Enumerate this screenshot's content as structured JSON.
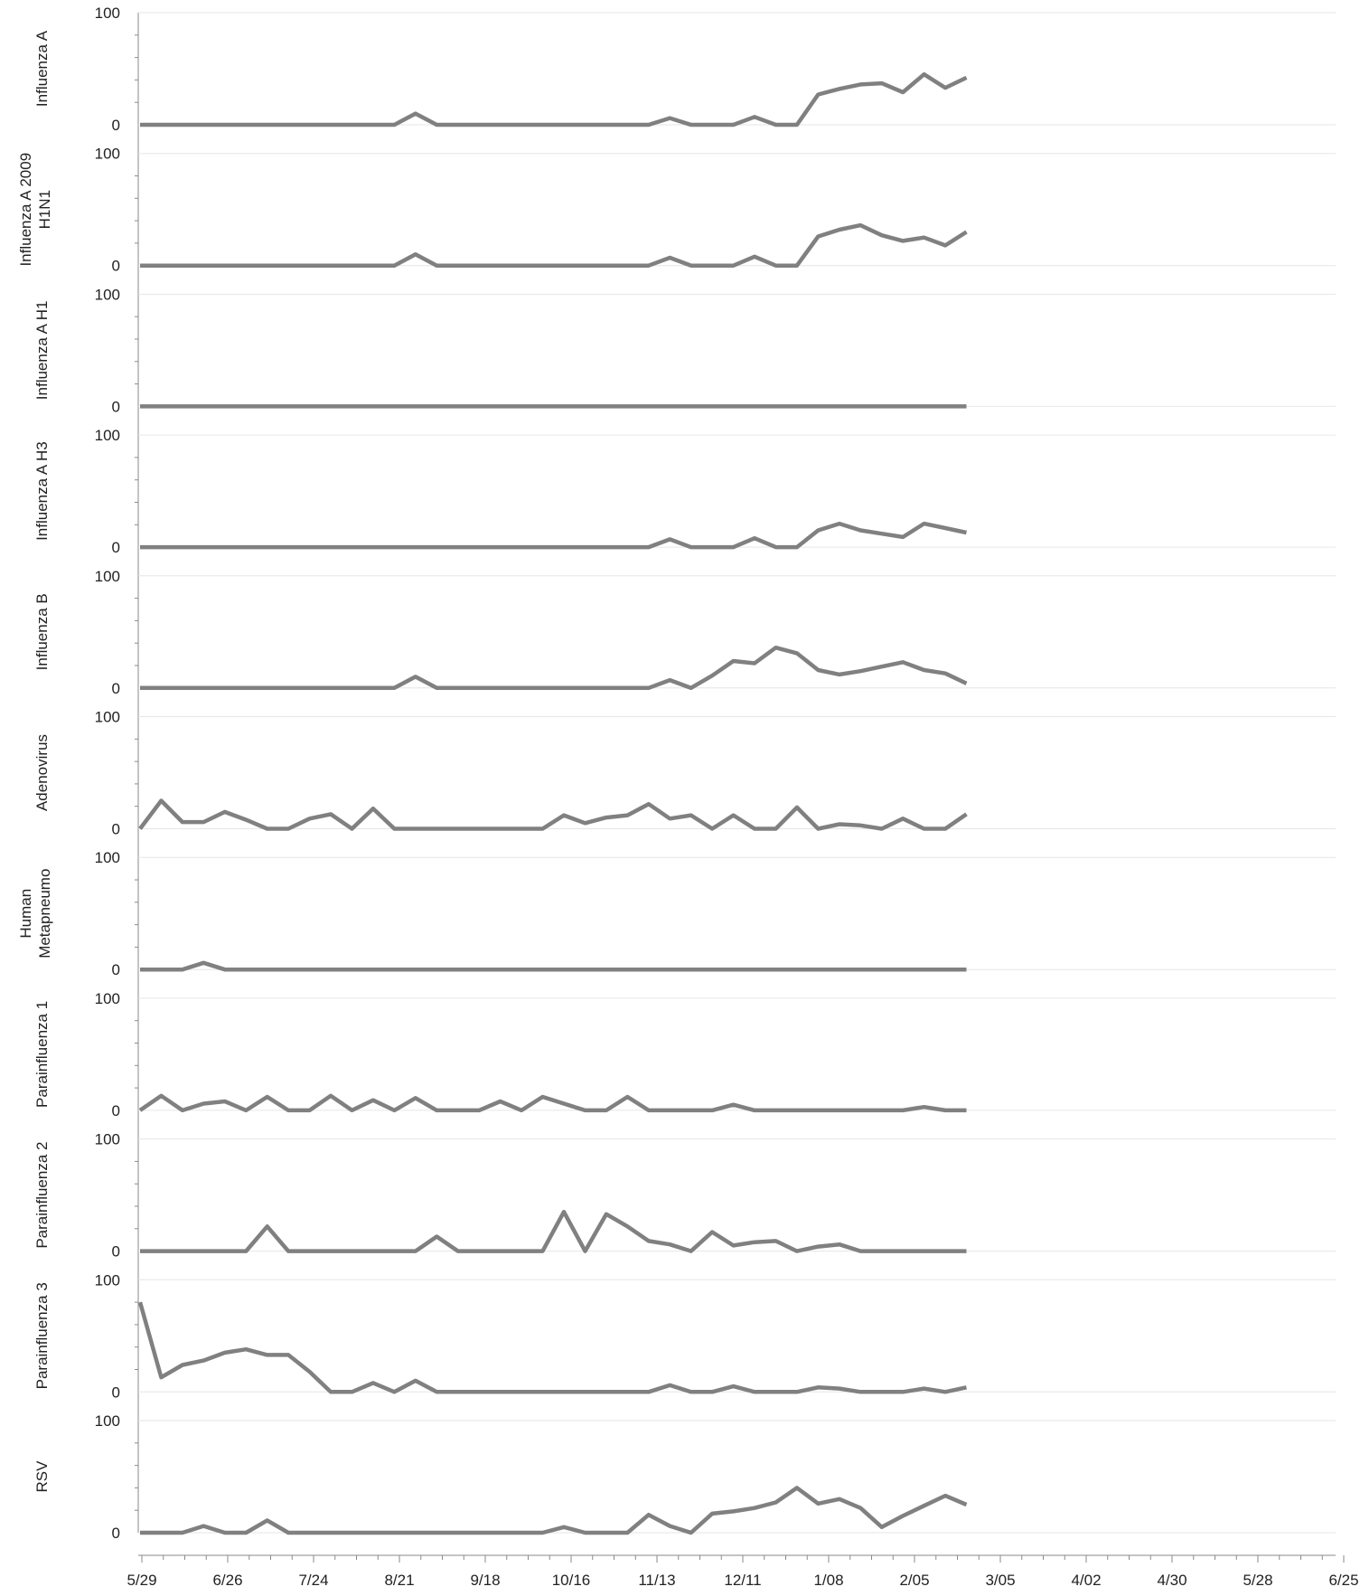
{
  "chart_data": {
    "type": "line",
    "description_axis": "shared x-axis of weekly dates",
    "x_ticks": [
      "5/29",
      "6/26",
      "7/24",
      "8/21",
      "9/18",
      "10/16",
      "11/13",
      "12/11",
      "1/08",
      "2/05",
      "3/05",
      "4/02",
      "4/30",
      "5/28",
      "6/25"
    ],
    "ylim": [
      0,
      100
    ],
    "y_ticks": [
      0,
      100
    ],
    "grid": true,
    "line_color": "#808080",
    "panels": [
      {
        "ylabel": "Influenza A",
        "values": [
          0,
          0,
          0,
          0,
          0,
          0,
          0,
          0,
          0,
          0,
          0,
          0,
          0,
          10,
          0,
          0,
          0,
          0,
          0,
          0,
          0,
          0,
          0,
          0,
          0,
          6,
          0,
          0,
          0,
          7,
          0,
          0,
          27,
          32,
          36,
          37,
          29,
          45,
          33,
          42
        ]
      },
      {
        "ylabel": "Influenza A 2009 H1N1",
        "values": [
          0,
          0,
          0,
          0,
          0,
          0,
          0,
          0,
          0,
          0,
          0,
          0,
          0,
          10,
          0,
          0,
          0,
          0,
          0,
          0,
          0,
          0,
          0,
          0,
          0,
          7,
          0,
          0,
          0,
          8,
          0,
          0,
          26,
          32,
          36,
          27,
          22,
          25,
          18,
          30
        ]
      },
      {
        "ylabel": "Influenza A H1",
        "values": [
          0,
          0,
          0,
          0,
          0,
          0,
          0,
          0,
          0,
          0,
          0,
          0,
          0,
          0,
          0,
          0,
          0,
          0,
          0,
          0,
          0,
          0,
          0,
          0,
          0,
          0,
          0,
          0,
          0,
          0,
          0,
          0,
          0,
          0,
          0,
          0,
          0,
          0,
          0,
          0
        ]
      },
      {
        "ylabel": "Influenza A H3",
        "values": [
          0,
          0,
          0,
          0,
          0,
          0,
          0,
          0,
          0,
          0,
          0,
          0,
          0,
          0,
          0,
          0,
          0,
          0,
          0,
          0,
          0,
          0,
          0,
          0,
          0,
          7,
          0,
          0,
          0,
          8,
          0,
          0,
          15,
          21,
          15,
          12,
          9,
          21,
          17,
          13
        ]
      },
      {
        "ylabel": "Influenza B",
        "values": [
          0,
          0,
          0,
          0,
          0,
          0,
          0,
          0,
          0,
          0,
          0,
          0,
          0,
          10,
          0,
          0,
          0,
          0,
          0,
          0,
          0,
          0,
          0,
          0,
          0,
          7,
          0,
          11,
          24,
          22,
          36,
          31,
          16,
          12,
          15,
          19,
          23,
          16,
          13,
          4
        ]
      },
      {
        "ylabel": "Adenovirus",
        "values": [
          0,
          25,
          6,
          6,
          15,
          8,
          0,
          0,
          9,
          13,
          0,
          18,
          0,
          0,
          0,
          0,
          0,
          0,
          0,
          0,
          12,
          5,
          10,
          12,
          22,
          9,
          12,
          0,
          12,
          0,
          0,
          19,
          0,
          4,
          3,
          0,
          9,
          0,
          0,
          13
        ]
      },
      {
        "ylabel": "Human Metapneumo",
        "values": [
          0,
          0,
          0,
          6,
          0,
          0,
          0,
          0,
          0,
          0,
          0,
          0,
          0,
          0,
          0,
          0,
          0,
          0,
          0,
          0,
          0,
          0,
          0,
          0,
          0,
          0,
          0,
          0,
          0,
          0,
          0,
          0,
          0,
          0,
          0,
          0,
          0,
          0,
          0,
          0
        ]
      },
      {
        "ylabel": "Parainfluenza 1",
        "values": [
          0,
          13,
          0,
          6,
          8,
          0,
          12,
          0,
          0,
          13,
          0,
          9,
          0,
          11,
          0,
          0,
          0,
          8,
          0,
          12,
          6,
          0,
          0,
          12,
          0,
          0,
          0,
          0,
          5,
          0,
          0,
          0,
          0,
          0,
          0,
          0,
          0,
          3,
          0,
          0
        ]
      },
      {
        "ylabel": "Parainfluenza 2",
        "values": [
          0,
          0,
          0,
          0,
          0,
          0,
          22,
          0,
          0,
          0,
          0,
          0,
          0,
          0,
          13,
          0,
          0,
          0,
          0,
          0,
          35,
          0,
          33,
          22,
          9,
          6,
          0,
          17,
          5,
          8,
          9,
          0,
          4,
          6,
          0,
          0,
          0,
          0,
          0,
          0
        ]
      },
      {
        "ylabel": "Parainfluenza 3",
        "values": [
          80,
          13,
          24,
          28,
          35,
          38,
          33,
          33,
          18,
          0,
          0,
          8,
          0,
          10,
          0,
          0,
          0,
          0,
          0,
          0,
          0,
          0,
          0,
          0,
          0,
          6,
          0,
          0,
          5,
          0,
          0,
          0,
          4,
          3,
          0,
          0,
          0,
          3,
          0,
          4
        ]
      },
      {
        "ylabel": "RSV",
        "values": [
          0,
          0,
          0,
          6,
          0,
          0,
          11,
          0,
          0,
          0,
          0,
          0,
          0,
          0,
          0,
          0,
          0,
          0,
          0,
          0,
          5,
          0,
          0,
          0,
          16,
          6,
          0,
          17,
          19,
          22,
          27,
          40,
          26,
          30,
          22,
          5,
          15,
          24,
          33,
          25
        ]
      }
    ]
  }
}
